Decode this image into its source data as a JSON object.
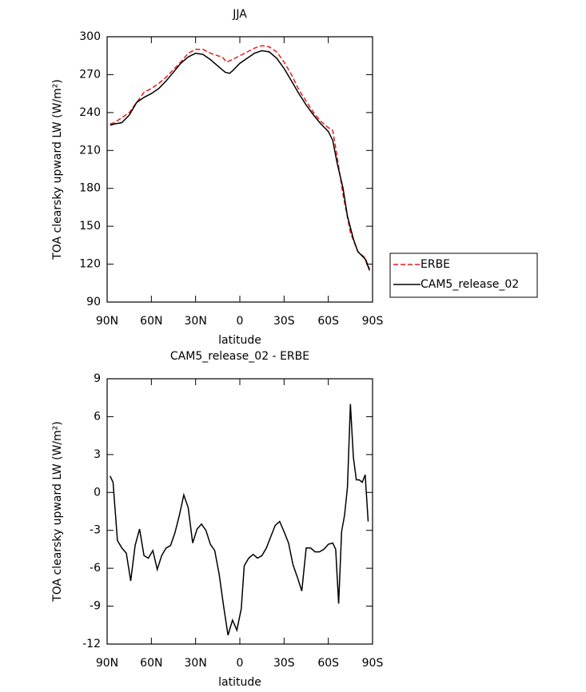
{
  "chart_data": [
    {
      "type": "line",
      "title": "JJA",
      "xlabel": "latitude",
      "ylabel": "TOA clearsky upward LW (W/m²)",
      "xlim": [
        90,
        -90
      ],
      "xticks": [
        {
          "value": 90,
          "label": "90N"
        },
        {
          "value": 60,
          "label": "60N"
        },
        {
          "value": 30,
          "label": "30N"
        },
        0,
        {
          "value": -30,
          "label": "30S"
        },
        {
          "value": -60,
          "label": "60S"
        },
        {
          "value": -90,
          "label": "90S"
        }
      ],
      "ylim": [
        90,
        300
      ],
      "yticks": [
        90,
        120,
        150,
        180,
        210,
        240,
        270,
        300
      ],
      "legend": "right",
      "series": [
        {
          "name": "ERBE",
          "color": "#e8191c",
          "dash": true,
          "x": [
            88,
            85,
            80,
            75,
            70,
            65,
            60,
            55,
            50,
            45,
            40,
            35,
            30,
            25,
            20,
            15,
            12,
            9,
            5,
            0,
            -5,
            -10,
            -15,
            -20,
            -25,
            -30,
            -35,
            -40,
            -45,
            -50,
            -55,
            -60,
            -63,
            -66,
            -70,
            -75,
            -80,
            -85,
            -88
          ],
          "values": [
            231,
            232,
            236,
            240,
            248,
            256,
            259,
            263,
            268,
            274,
            280,
            287,
            290,
            290,
            287,
            285,
            284,
            280,
            282,
            285,
            288,
            291,
            293,
            292,
            288,
            280,
            270,
            258,
            249,
            240,
            233,
            228,
            226,
            205,
            175,
            145,
            130,
            125,
            116
          ]
        },
        {
          "name": "CAM5_release_02",
          "color": "#000000",
          "dash": false,
          "x": [
            88,
            85,
            80,
            75,
            70,
            65,
            60,
            55,
            50,
            45,
            40,
            35,
            30,
            25,
            20,
            15,
            10,
            7,
            5,
            0,
            -5,
            -10,
            -15,
            -20,
            -25,
            -30,
            -35,
            -40,
            -45,
            -50,
            -55,
            -60,
            -63,
            -66,
            -70,
            -73,
            -77,
            -80,
            -85,
            -88
          ],
          "values": [
            230,
            231,
            232,
            238,
            248,
            252,
            255,
            259,
            265,
            272,
            279,
            284,
            287,
            286,
            282,
            277,
            272,
            271,
            273,
            279,
            283,
            287,
            289,
            288,
            283,
            275,
            265,
            255,
            246,
            238,
            231,
            225,
            218,
            200,
            180,
            158,
            140,
            130,
            124,
            115
          ]
        }
      ]
    },
    {
      "type": "line",
      "title": "CAM5_release_02 - ERBE",
      "xlabel": "latitude",
      "ylabel": "TOA clearsky upward LW (W/m²)",
      "xlim": [
        90,
        -90
      ],
      "xticks": [
        {
          "value": 90,
          "label": "90N"
        },
        {
          "value": 60,
          "label": "60N"
        },
        {
          "value": 30,
          "label": "30N"
        },
        0,
        {
          "value": -30,
          "label": "30S"
        },
        {
          "value": -60,
          "label": "60S"
        },
        {
          "value": -90,
          "label": "90S"
        }
      ],
      "ylim": [
        -12,
        9
      ],
      "yticks": [
        -12,
        -9,
        -6,
        -3,
        0,
        3,
        6,
        9
      ],
      "series": [
        {
          "color": "#000000",
          "dash": false,
          "x": [
            88,
            86,
            83,
            80,
            77,
            74,
            71,
            68,
            65,
            62,
            59,
            56,
            53,
            50,
            47,
            44,
            41,
            38,
            35,
            32,
            29,
            26,
            23,
            20,
            17,
            14,
            11,
            8,
            5,
            2,
            -1,
            -3,
            -6,
            -9,
            -12,
            -15,
            -18,
            -21,
            -24,
            -27,
            -30,
            -33,
            -36,
            -39,
            -42,
            -45,
            -48,
            -51,
            -54,
            -57,
            -60,
            -63,
            -65,
            -67,
            -69,
            -71,
            -73,
            -75,
            -77,
            -79,
            -81,
            -83,
            -85,
            -87
          ],
          "values": [
            1.3,
            0.8,
            -3.8,
            -4.4,
            -4.8,
            -7.0,
            -4.2,
            -2.9,
            -5.0,
            -5.2,
            -4.6,
            -6.1,
            -5.0,
            -4.4,
            -4.2,
            -3.2,
            -1.8,
            -0.2,
            -1.2,
            -4.0,
            -2.9,
            -2.5,
            -3.0,
            -4.1,
            -4.6,
            -6.5,
            -9.0,
            -11.3,
            -10.1,
            -10.9,
            -9.2,
            -5.8,
            -5.2,
            -4.9,
            -5.2,
            -5.0,
            -4.4,
            -3.5,
            -2.6,
            -2.3,
            -3.1,
            -4.0,
            -5.7,
            -6.7,
            -7.8,
            -4.4,
            -4.4,
            -4.7,
            -4.7,
            -4.5,
            -4.1,
            -4.0,
            -4.5,
            -8.8,
            -3.1,
            -1.8,
            0.4,
            7.0,
            2.8,
            1.0,
            1.0,
            0.8,
            1.4,
            -2.3
          ]
        }
      ]
    }
  ]
}
